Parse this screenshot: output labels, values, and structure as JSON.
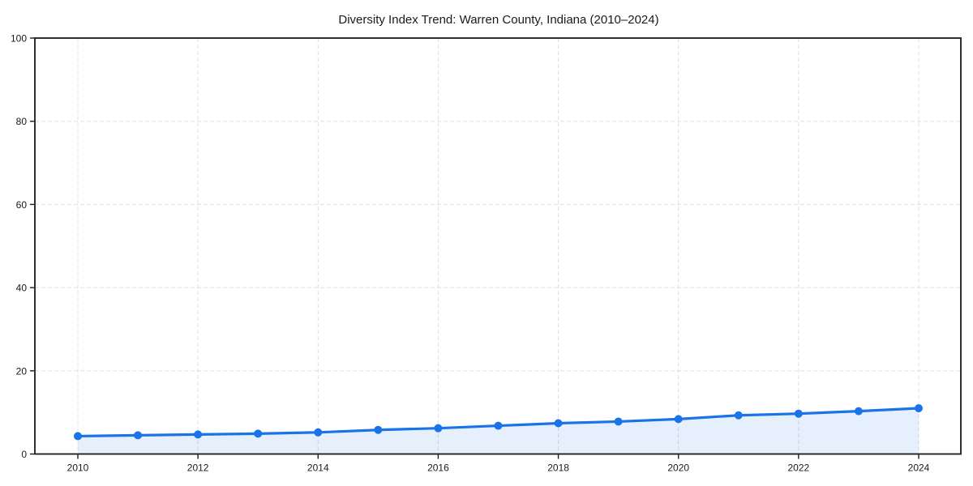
{
  "chart_data": {
    "type": "line",
    "title": "Diversity Index Trend: Warren County, Indiana (2010–2024)",
    "series": [
      {
        "name": "Diversity Index",
        "x": [
          2010,
          2011,
          2012,
          2013,
          2014,
          2015,
          2016,
          2017,
          2018,
          2019,
          2020,
          2021,
          2022,
          2023,
          2024
        ],
        "values": [
          4.3,
          4.5,
          4.7,
          4.9,
          5.2,
          5.8,
          6.2,
          6.8,
          7.4,
          7.8,
          8.4,
          9.3,
          9.7,
          10.3,
          11.0
        ]
      }
    ],
    "xlabel": "",
    "ylabel": "",
    "xlim": [
      2009.3,
      2024.7
    ],
    "ylim": [
      0,
      100
    ],
    "xticks": [
      2010,
      2012,
      2014,
      2016,
      2018,
      2020,
      2022,
      2024
    ],
    "yticks": [
      0,
      20,
      40,
      60,
      80,
      100
    ],
    "grid": "dashed",
    "grid_vertical_at": "xticks",
    "grid_horizontal_at": "yticks",
    "legend": "none",
    "marker": "circle",
    "area_fill": true,
    "colors": {
      "line": "#1a73e8",
      "marker": "#1a73e8",
      "area_fill": "rgba(26,115,232,0.11)",
      "grid": "#e0e0e0",
      "axis_frame": "#1a1a1a",
      "tick_label": "#1a1a1a",
      "title": "#1a1a1a",
      "background": "#ffffff"
    }
  }
}
